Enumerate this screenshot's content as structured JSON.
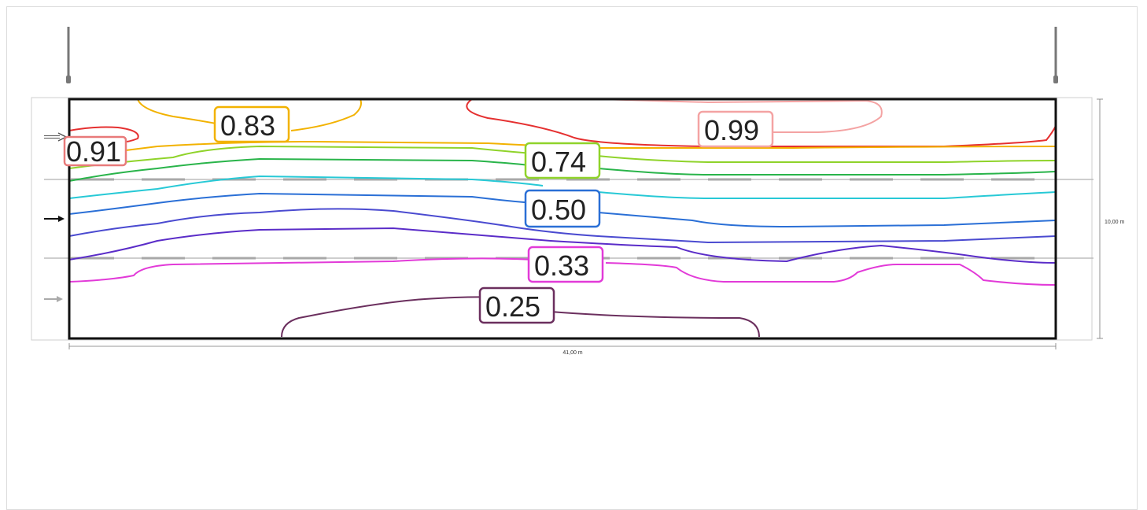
{
  "diagram": {
    "width_dimension": "41,00 m",
    "height_dimension": "10,00 m",
    "contours": [
      {
        "value": "0.25",
        "color": "#6b2f5e"
      },
      {
        "value": "0.33",
        "color": "#e23ad8"
      },
      {
        "value": "0.41",
        "color": "#5a2cc8"
      },
      {
        "value": "0.50",
        "color": "#2a6fd6"
      },
      {
        "value": "0.58",
        "color": "#27c9d6"
      },
      {
        "value": "0.66",
        "color": "#29b44a"
      },
      {
        "value": "0.74",
        "color": "#8fd32a"
      },
      {
        "value": "0.83",
        "color": "#f2b200"
      },
      {
        "value": "0.91",
        "color": "#e53030"
      },
      {
        "value": "0.99",
        "color": "#f4a3a3"
      }
    ],
    "labels": [
      {
        "text": "0.91",
        "color": "#e87a7a"
      },
      {
        "text": "0.83",
        "color": "#f2b200"
      },
      {
        "text": "0.74",
        "color": "#8fd32a"
      },
      {
        "text": "0.50",
        "color": "#2a6fd6"
      },
      {
        "text": "0.33",
        "color": "#e23ad8"
      },
      {
        "text": "0.25",
        "color": "#6b2f5e"
      },
      {
        "text": "0.99",
        "color": "#f4a3a3"
      }
    ]
  }
}
